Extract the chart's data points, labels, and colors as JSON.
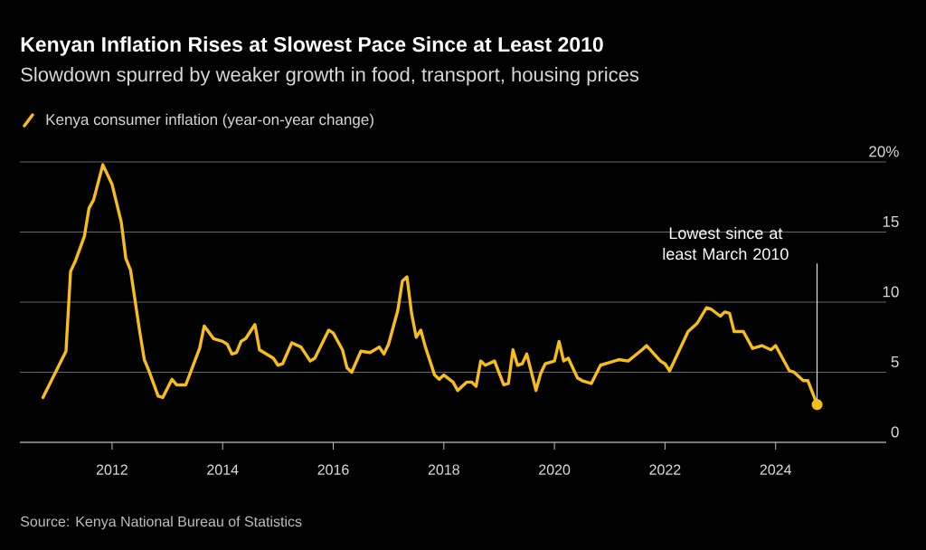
{
  "chart_data": {
    "type": "line",
    "title": "Kenyan Inflation Rises at Slowest Pace Since at Least 2010",
    "subtitle": "Slowdown spurred by weaker growth in food, transport, housing prices",
    "x": [
      "2010-10",
      "2011-03",
      "2011-04",
      "2011-05",
      "2011-07",
      "2011-08",
      "2011-09",
      "2011-11",
      "2012-01",
      "2012-03",
      "2012-04",
      "2012-05",
      "2012-07",
      "2012-08",
      "2012-09",
      "2012-11",
      "2012-12",
      "2013-02",
      "2013-03",
      "2013-05",
      "2013-08",
      "2013-09",
      "2013-11",
      "2014-01",
      "2014-02",
      "2014-03",
      "2014-04",
      "2014-05",
      "2014-06",
      "2014-08",
      "2014-09",
      "2014-12",
      "2015-01",
      "2015-02",
      "2015-04",
      "2015-06",
      "2015-08",
      "2015-09",
      "2015-12",
      "2016-01",
      "2016-03",
      "2016-04",
      "2016-05",
      "2016-07",
      "2016-09",
      "2016-11",
      "2016-12",
      "2017-01",
      "2017-03",
      "2017-04",
      "2017-05",
      "2017-06",
      "2017-07",
      "2017-08",
      "2017-09",
      "2017-11",
      "2017-12",
      "2018-01",
      "2018-03",
      "2018-04",
      "2018-06",
      "2018-07",
      "2018-08",
      "2018-09",
      "2018-10",
      "2018-12",
      "2019-02",
      "2019-03",
      "2019-04",
      "2019-05",
      "2019-06",
      "2019-07",
      "2019-09",
      "2019-10",
      "2019-11",
      "2020-01",
      "2020-02",
      "2020-03",
      "2020-04",
      "2020-06",
      "2020-07",
      "2020-09",
      "2020-11",
      "2021-01",
      "2021-03",
      "2021-05",
      "2021-08",
      "2021-09",
      "2021-12",
      "2022-01",
      "2022-02",
      "2022-04",
      "2022-06",
      "2022-08",
      "2022-10",
      "2022-11",
      "2023-01",
      "2023-02",
      "2023-03",
      "2023-04",
      "2023-06",
      "2023-08",
      "2023-10",
      "2023-12",
      "2024-01",
      "2024-04",
      "2024-05",
      "2024-07",
      "2024-08",
      "2024-10"
    ],
    "series": [
      {
        "name": "Kenya consumer inflation (year-on-year change)",
        "color": "#f7bd1b",
        "values": [
          3.2,
          6.5,
          12.2,
          12.9,
          14.7,
          16.7,
          17.3,
          19.8,
          18.4,
          15.7,
          13.1,
          12.3,
          7.9,
          5.9,
          5.1,
          3.3,
          3.2,
          4.5,
          4.1,
          4.1,
          6.7,
          8.3,
          7.4,
          7.2,
          7.0,
          6.3,
          6.4,
          7.2,
          7.4,
          8.4,
          6.6,
          6.0,
          5.5,
          5.6,
          7.1,
          6.8,
          5.8,
          6.0,
          8.0,
          7.8,
          6.6,
          5.3,
          5.0,
          6.5,
          6.4,
          6.8,
          6.3,
          7.0,
          9.4,
          11.5,
          11.8,
          9.2,
          7.5,
          8.0,
          6.8,
          4.8,
          4.5,
          4.8,
          4.3,
          3.7,
          4.3,
          4.3,
          4.0,
          5.8,
          5.5,
          5.8,
          4.1,
          4.2,
          6.6,
          5.5,
          5.6,
          6.3,
          3.7,
          4.9,
          5.6,
          5.8,
          7.2,
          5.8,
          6.0,
          4.6,
          4.4,
          4.2,
          5.5,
          5.7,
          5.9,
          5.8,
          6.6,
          6.9,
          5.8,
          5.6,
          5.1,
          6.5,
          7.9,
          8.5,
          9.6,
          9.5,
          9.0,
          9.3,
          9.2,
          7.9,
          7.9,
          6.7,
          6.9,
          6.6,
          6.9,
          5.1,
          5.0,
          4.4,
          4.4,
          2.7
        ]
      }
    ],
    "xlim": [
      "2010-05",
      "2026-01"
    ],
    "xticks": [
      "2012",
      "2014",
      "2016",
      "2018",
      "2020",
      "2022",
      "2024"
    ],
    "ylim": [
      0,
      20
    ],
    "yticks": [
      0,
      5,
      10,
      15,
      {
        "value": 20,
        "label": "20%"
      }
    ],
    "grid": "y",
    "legend": "top left",
    "ref_lines": [
      {
        "axis": "x",
        "value": "2024-10",
        "label": "Lowest since at least March 2010",
        "color": "#ffffff"
      }
    ],
    "annotations": [
      "Source: Kenya National Bureau of Statistics"
    ]
  }
}
